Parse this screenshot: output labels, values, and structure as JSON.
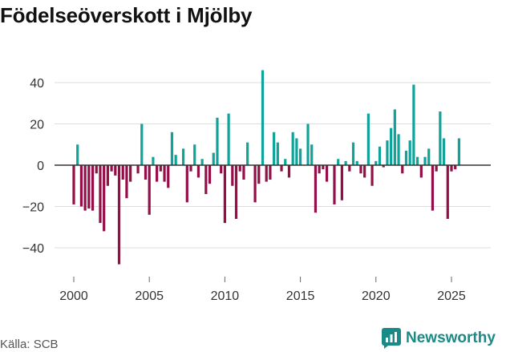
{
  "title": "Födelseöverskott i Mjölby",
  "source": "Källa: SCB",
  "brand": "Newsworthy",
  "colors": {
    "positive": "#0fa39a",
    "negative": "#950e47",
    "grid": "#dddddd",
    "zero": "#333333",
    "brand": "#1a8a86"
  },
  "chart_data": {
    "type": "bar",
    "title": "Födelseöverskott i Mjölby",
    "xlabel": "",
    "ylabel": "",
    "frequency": "quarterly",
    "x_start": 2000.0,
    "x_step": 0.25,
    "x_ticks": [
      "2000",
      "2005",
      "2010",
      "2015",
      "2020",
      "2025"
    ],
    "y_ticks": [
      "40",
      "20",
      "0",
      "−20",
      "−40"
    ],
    "ylim": [
      -55,
      55
    ],
    "xlim": [
      1999.0,
      2027.5
    ],
    "values": [
      -19,
      10,
      -20,
      -22,
      -21,
      -22,
      -4,
      -28,
      -32,
      -10,
      -3,
      -5,
      -48,
      -7,
      -16,
      -8,
      0,
      -4,
      20,
      -7,
      -24,
      4,
      -8,
      -3,
      -8,
      -11,
      16,
      5,
      0,
      8,
      -18,
      -3,
      10,
      -6,
      3,
      -14,
      -9,
      6,
      23,
      -4,
      -28,
      25,
      -10,
      -26,
      -3,
      -7,
      11,
      0,
      -18,
      -9,
      46,
      -8,
      -7,
      16,
      11,
      -3,
      3,
      -6,
      16,
      13,
      8,
      0,
      20,
      10,
      -23,
      -4,
      -2,
      -8,
      0,
      -19,
      3,
      -17,
      2,
      -3,
      11,
      2,
      -4,
      -6,
      25,
      -10,
      2,
      9,
      -1,
      12,
      18,
      27,
      15,
      -4,
      7,
      12,
      39,
      4,
      -6,
      4,
      8,
      -22,
      -3,
      26,
      13,
      -26,
      -3,
      -2,
      13
    ]
  }
}
